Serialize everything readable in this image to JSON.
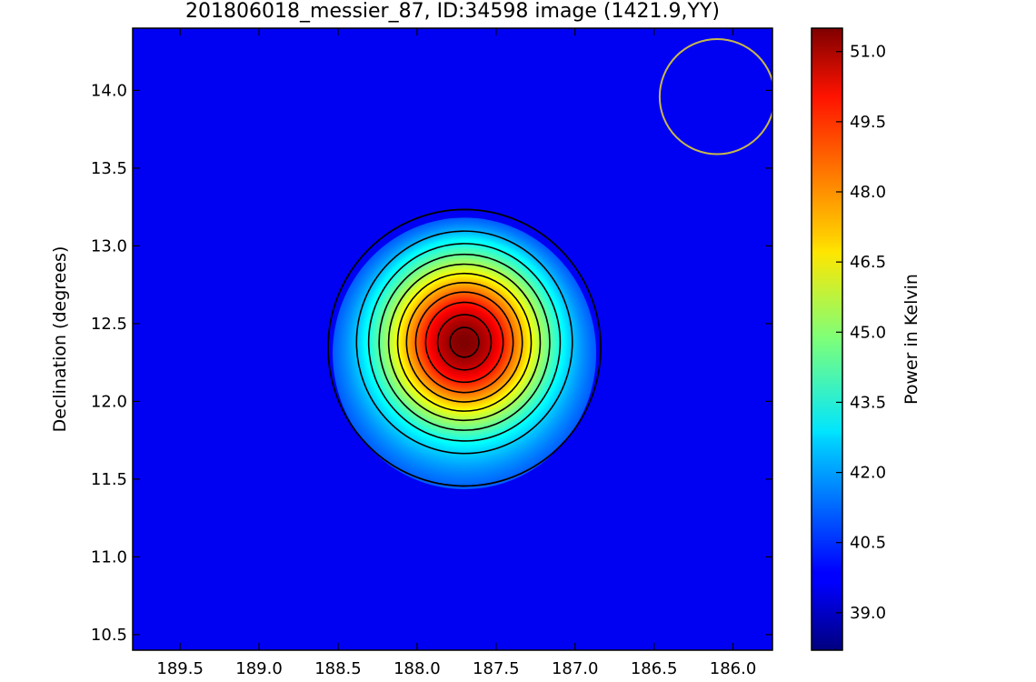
{
  "chart_data": {
    "type": "heatmap",
    "title": "201806018_messier_87, ID:34598 image (1421.9,YY)",
    "xlabel": "",
    "ylabel": "Declination (degrees)",
    "colorbar_label": "Power in Kelvin",
    "colormap": "jet",
    "xlim": [
      189.8,
      185.75
    ],
    "ylim": [
      10.4,
      14.4
    ],
    "x_ticks": [
      189.5,
      189.0,
      188.5,
      188.0,
      187.5,
      187.0,
      186.5,
      186.0
    ],
    "x_tick_labels": [
      "189.5",
      "189.0",
      "188.5",
      "188.0",
      "187.5",
      "187.0",
      "186.5",
      "186.0"
    ],
    "y_ticks": [
      10.5,
      11.0,
      11.5,
      12.0,
      12.5,
      13.0,
      13.5,
      14.0
    ],
    "y_tick_labels": [
      "10.5",
      "11.0",
      "11.5",
      "12.0",
      "12.5",
      "13.0",
      "13.5",
      "14.0"
    ],
    "colorbar_range": [
      38.2,
      51.5
    ],
    "colorbar_ticks": [
      39.0,
      40.5,
      42.0,
      43.5,
      45.0,
      46.5,
      48.0,
      49.5,
      51.0
    ],
    "colorbar_tick_labels": [
      "39.0",
      "40.5",
      "42.0",
      "43.5",
      "45.0",
      "46.5",
      "48.0",
      "49.5",
      "51.0"
    ],
    "source": {
      "ra": 187.7,
      "dec": 12.38,
      "peak_kelvin": 51.5,
      "background_kelvin": 39.7
    },
    "contour_levels": [
      40.5,
      41.5,
      42.5,
      43.5,
      44.5,
      45.5,
      46.5,
      47.5,
      48.5,
      49.5,
      50.5,
      51.2
    ],
    "beam_circle": {
      "ra": 186.1,
      "dec": 13.96,
      "radius_deg": 0.37,
      "color": "#c8b84a"
    }
  }
}
